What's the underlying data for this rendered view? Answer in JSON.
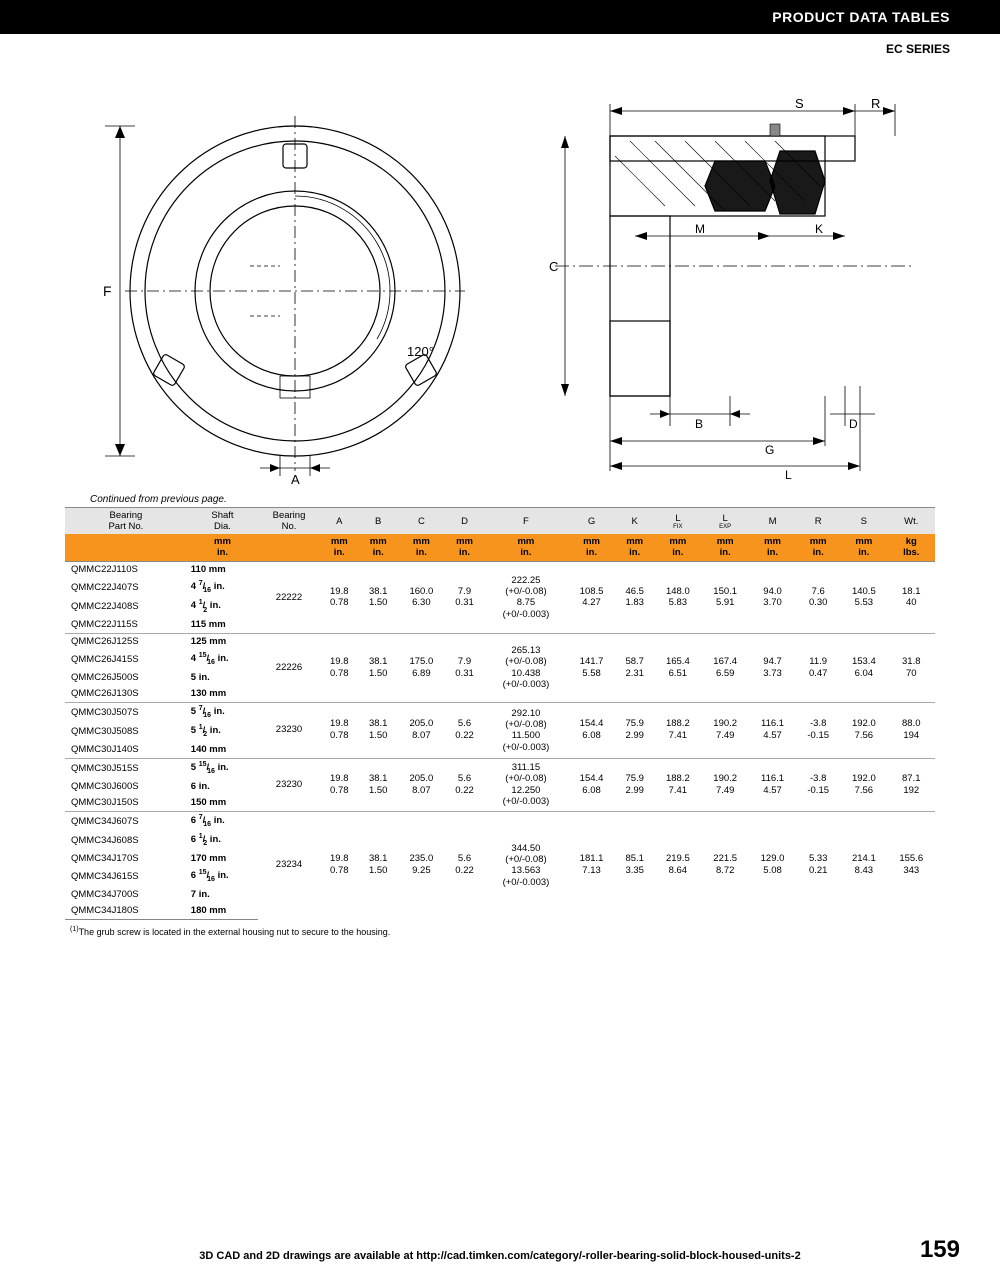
{
  "header": {
    "title": "PRODUCT DATA TABLES",
    "series": "EC SERIES"
  },
  "continued": "Continued from previous page.",
  "footnote": "The grub screw is located in the external housing nut to secure to the housing.",
  "footer": {
    "note": "3D CAD and 2D drawings are available at http://cad.timken.com/category/-roller-bearing-solid-block-housed-units-2",
    "page": "159"
  },
  "drawing_labels": {
    "F": "F",
    "A": "A",
    "angle": "120°",
    "C": "C",
    "B": "B",
    "D": "D",
    "G": "G",
    "L": "L",
    "M": "M",
    "K": "K",
    "S": "S",
    "R": "R"
  },
  "columns": [
    {
      "label": "Bearing\nPart No.",
      "u1": "",
      "u2": ""
    },
    {
      "label": "Shaft\nDia.",
      "u1": "mm",
      "u2": "in."
    },
    {
      "label": "Bearing\nNo.",
      "u1": "",
      "u2": ""
    },
    {
      "label": "A",
      "u1": "mm",
      "u2": "in."
    },
    {
      "label": "B",
      "u1": "mm",
      "u2": "in."
    },
    {
      "label": "C",
      "u1": "mm",
      "u2": "in."
    },
    {
      "label": "D",
      "u1": "mm",
      "u2": "in."
    },
    {
      "label": "F",
      "u1": "mm",
      "u2": "in."
    },
    {
      "label": "G",
      "u1": "mm",
      "u2": "in."
    },
    {
      "label": "K",
      "u1": "mm",
      "u2": "in."
    },
    {
      "label": "L",
      "sub": "FIX",
      "u1": "mm",
      "u2": "in."
    },
    {
      "label": "L",
      "sub": "EXP",
      "u1": "mm",
      "u2": "in."
    },
    {
      "label": "M",
      "u1": "mm",
      "u2": "in."
    },
    {
      "label": "R",
      "u1": "mm",
      "u2": "in."
    },
    {
      "label": "S",
      "u1": "mm",
      "u2": "in."
    },
    {
      "label": "Wt.",
      "u1": "kg",
      "u2": "lbs."
    }
  ],
  "groups": [
    {
      "parts": [
        {
          "no": "QMMC22J110S",
          "shaft": "110 mm"
        },
        {
          "no": "QMMC22J407S",
          "shaft": "4 7/16 in."
        },
        {
          "no": "QMMC22J408S",
          "shaft": "4 1/2 in."
        },
        {
          "no": "QMMC22J115S",
          "shaft": "115 mm"
        }
      ],
      "bearing": "22222",
      "A": [
        "19.8",
        "0.78"
      ],
      "B": [
        "38.1",
        "1.50"
      ],
      "C": [
        "160.0",
        "6.30"
      ],
      "D": [
        "7.9",
        "0.31"
      ],
      "F": [
        "222.25",
        "(+0/-0.08)",
        "8.75",
        "(+0/-0.003)"
      ],
      "G": [
        "108.5",
        "4.27"
      ],
      "K": [
        "46.5",
        "1.83"
      ],
      "LFIX": [
        "148.0",
        "5.83"
      ],
      "LEXP": [
        "150.1",
        "5.91"
      ],
      "M": [
        "94.0",
        "3.70"
      ],
      "R": [
        "7.6",
        "0.30"
      ],
      "S": [
        "140.5",
        "5.53"
      ],
      "Wt": [
        "18.1",
        "40"
      ]
    },
    {
      "parts": [
        {
          "no": "QMMC26J125S",
          "shaft": "125 mm"
        },
        {
          "no": "QMMC26J415S",
          "shaft": "4 15/16 in."
        },
        {
          "no": "QMMC26J500S",
          "shaft": "5 in."
        },
        {
          "no": "QMMC26J130S",
          "shaft": "130 mm"
        }
      ],
      "bearing": "22226",
      "A": [
        "19.8",
        "0.78"
      ],
      "B": [
        "38.1",
        "1.50"
      ],
      "C": [
        "175.0",
        "6.89"
      ],
      "D": [
        "7.9",
        "0.31"
      ],
      "F": [
        "265.13",
        "(+0/-0.08)",
        "10.438",
        "(+0/-0.003)"
      ],
      "G": [
        "141.7",
        "5.58"
      ],
      "K": [
        "58.7",
        "2.31"
      ],
      "LFIX": [
        "165.4",
        "6.51"
      ],
      "LEXP": [
        "167.4",
        "6.59"
      ],
      "M": [
        "94.7",
        "3.73"
      ],
      "R": [
        "11.9",
        "0.47"
      ],
      "S": [
        "153.4",
        "6.04"
      ],
      "Wt": [
        "31.8",
        "70"
      ]
    },
    {
      "parts": [
        {
          "no": "QMMC30J507S",
          "shaft": "5 7/16 in."
        },
        {
          "no": "QMMC30J508S",
          "shaft": "5 1/2 in."
        },
        {
          "no": "QMMC30J140S",
          "shaft": "140 mm"
        }
      ],
      "bearing": "23230",
      "A": [
        "19.8",
        "0.78"
      ],
      "B": [
        "38.1",
        "1.50"
      ],
      "C": [
        "205.0",
        "8.07"
      ],
      "D": [
        "5.6",
        "0.22"
      ],
      "F": [
        "292.10",
        "(+0/-0.08)",
        "11.500",
        "(+0/-0.003)"
      ],
      "G": [
        "154.4",
        "6.08"
      ],
      "K": [
        "75.9",
        "2.99"
      ],
      "LFIX": [
        "188.2",
        "7.41"
      ],
      "LEXP": [
        "190.2",
        "7.49"
      ],
      "M": [
        "116.1",
        "4.57"
      ],
      "R": [
        "-3.8",
        "-0.15"
      ],
      "S": [
        "192.0",
        "7.56"
      ],
      "Wt": [
        "88.0",
        "194"
      ]
    },
    {
      "parts": [
        {
          "no": "QMMC30J515S",
          "shaft": "5 15/16 in."
        },
        {
          "no": "QMMC30J600S",
          "shaft": "6 in."
        },
        {
          "no": "QMMC30J150S",
          "shaft": "150 mm"
        }
      ],
      "bearing": "23230",
      "A": [
        "19.8",
        "0.78"
      ],
      "B": [
        "38.1",
        "1.50"
      ],
      "C": [
        "205.0",
        "8.07"
      ],
      "D": [
        "5.6",
        "0.22"
      ],
      "F": [
        "311.15",
        "(+0/-0.08)",
        "12.250",
        "(+0/-0.003)"
      ],
      "G": [
        "154.4",
        "6.08"
      ],
      "K": [
        "75.9",
        "2.99"
      ],
      "LFIX": [
        "188.2",
        "7.41"
      ],
      "LEXP": [
        "190.2",
        "7.49"
      ],
      "M": [
        "116.1",
        "4.57"
      ],
      "R": [
        "-3.8",
        "-0.15"
      ],
      "S": [
        "192.0",
        "7.56"
      ],
      "Wt": [
        "87.1",
        "192"
      ]
    },
    {
      "parts": [
        {
          "no": "QMMC34J607S",
          "shaft": "6 7/16 in."
        },
        {
          "no": "QMMC34J608S",
          "shaft": "6 1/2 in."
        },
        {
          "no": "QMMC34J170S",
          "shaft": "170 mm"
        },
        {
          "no": "QMMC34J615S",
          "shaft": "6 15/16 in."
        },
        {
          "no": "QMMC34J700S",
          "shaft": "7 in."
        },
        {
          "no": "QMMC34J180S",
          "shaft": "180 mm"
        }
      ],
      "bearing": "23234",
      "A": [
        "19.8",
        "0.78"
      ],
      "B": [
        "38.1",
        "1.50"
      ],
      "C": [
        "235.0",
        "9.25"
      ],
      "D": [
        "5.6",
        "0.22"
      ],
      "F": [
        "344.50",
        "(+0/-0.08)",
        "13.563",
        "(+0/-0.003)"
      ],
      "G": [
        "181.1",
        "7.13"
      ],
      "K": [
        "85.1",
        "3.35"
      ],
      "LFIX": [
        "219.5",
        "8.64"
      ],
      "LEXP": [
        "221.5",
        "8.72"
      ],
      "M": [
        "129.0",
        "5.08"
      ],
      "R": [
        "5.33",
        "0.21"
      ],
      "S": [
        "214.1",
        "8.43"
      ],
      "Wt": [
        "155.6",
        "343"
      ]
    }
  ],
  "style": {
    "orange": "#f7941d",
    "gray_header": "#e5e5e5",
    "border": "#888888",
    "sep": "#aaaaaa"
  }
}
